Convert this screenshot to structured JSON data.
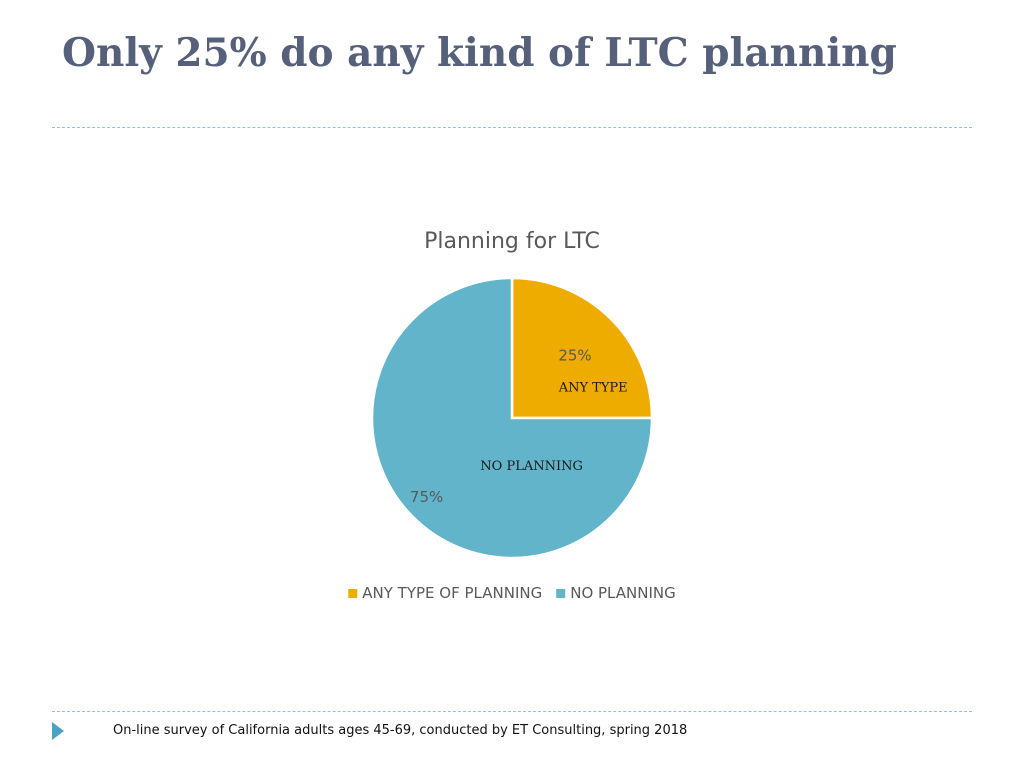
{
  "slide": {
    "title": "Only 25% do any kind of LTC planning",
    "footnote": "On-line survey of California adults ages 45-69, conducted by ET Consulting, spring 2018"
  },
  "chart_data": {
    "type": "pie",
    "title": "Planning for LTC",
    "categories": [
      "ANY TYPE OF PLANNING",
      "NO PLANNING"
    ],
    "values": [
      25,
      75
    ],
    "data_labels": [
      "25%",
      "75%"
    ],
    "slice_annotations": [
      "ANY TYPE",
      "NO PLANNING"
    ],
    "colors": [
      "#eeab00",
      "#62b4cb"
    ],
    "start_angle": "12 o'clock, clockwise",
    "legend_position": "bottom"
  },
  "icons": {
    "footer_bullet": "triangle-right-icon",
    "footer_bullet_color": "#4aa3c4"
  }
}
